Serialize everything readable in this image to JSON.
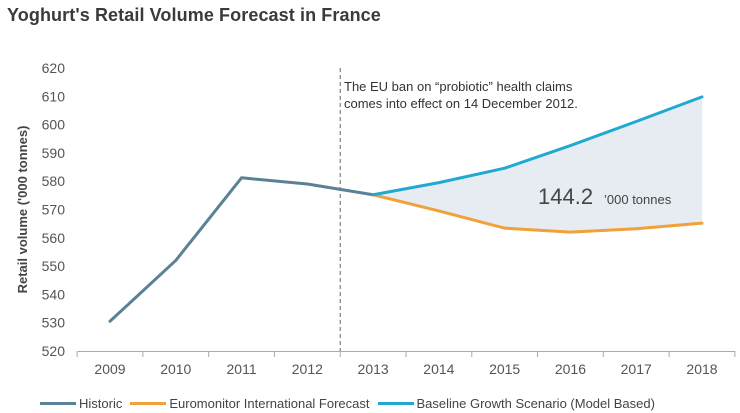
{
  "chart_data": {
    "type": "line",
    "title": "Yoghurt's Retail Volume Forecast in France",
    "ylabel": "Retail volume ('000 tonnes)",
    "xlabel": "",
    "ylim": [
      520,
      620
    ],
    "yticks": [
      520,
      530,
      540,
      550,
      560,
      570,
      580,
      590,
      600,
      610,
      620
    ],
    "categories": [
      "2009",
      "2010",
      "2011",
      "2012",
      "2013",
      "2014",
      "2015",
      "2016",
      "2017",
      "2018"
    ],
    "series": [
      {
        "name": "Historic",
        "color": "#5b8196",
        "values": [
          530.5,
          552,
          581.2,
          579,
          575.2,
          null,
          null,
          null,
          null,
          null
        ]
      },
      {
        "name": "Euromonitor International Forecast",
        "color": "#f0a13a",
        "values": [
          null,
          null,
          null,
          null,
          575.2,
          569.5,
          563.4,
          562,
          563.2,
          565.2
        ]
      },
      {
        "name": "Baseline Growth Scenario (Model Based)",
        "color": "#21a9d2",
        "values": [
          null,
          null,
          null,
          null,
          575.2,
          579.5,
          584.6,
          592.6,
          601.1,
          609.8
        ]
      }
    ],
    "shaded_region": {
      "between": [
        "Euromonitor International Forecast",
        "Baseline Growth Scenario (Model Based)"
      ],
      "color": "#e6ecf1"
    },
    "divider_category": "2012",
    "annotation": {
      "lines": [
        "The EU ban on “probiotic” health claims",
        "comes into effect on 14 December 2012."
      ],
      "value": "144.2",
      "unit": "’000 tonnes"
    },
    "legend": [
      "Historic",
      "Euromonitor International Forecast",
      "Baseline Growth Scenario (Model Based)"
    ],
    "legend_position": "bottom",
    "grid": false
  }
}
